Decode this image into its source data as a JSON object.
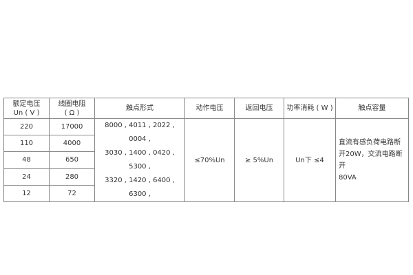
{
  "table": {
    "headers": [
      "额定电压\nUn ( V )",
      "线圈电阻\n( Ω )",
      "触点形式",
      "动作电压",
      "返回电压",
      "功率消耗 ( W )",
      "触点容量"
    ],
    "header_lines": {
      "voltage": [
        "额定电压",
        "Un ( V )"
      ],
      "resistance": [
        "线圈电阻",
        "( Ω )"
      ]
    },
    "rows": [
      {
        "voltage": "220",
        "resistance": "17000"
      },
      {
        "voltage": "110",
        "resistance": "4000"
      },
      {
        "voltage": "48",
        "resistance": "650"
      },
      {
        "voltage": "24",
        "resistance": "280"
      },
      {
        "voltage": "12",
        "resistance": "72"
      }
    ],
    "contact_forms": [
      "8000 , 4011 , 2022 , 0004 ,",
      "3030 , 1400 , 0420 , 5300 ,",
      "3320 , 1420 , 6400 , 6300 ,"
    ],
    "operate_voltage": "≤70%Un",
    "release_voltage": "≥  5%Un",
    "power": "Un下  ≤4",
    "contact_capacity": [
      "直流有感负荷电路断",
      "开20W，交流电路断开",
      "80VA"
    ]
  }
}
